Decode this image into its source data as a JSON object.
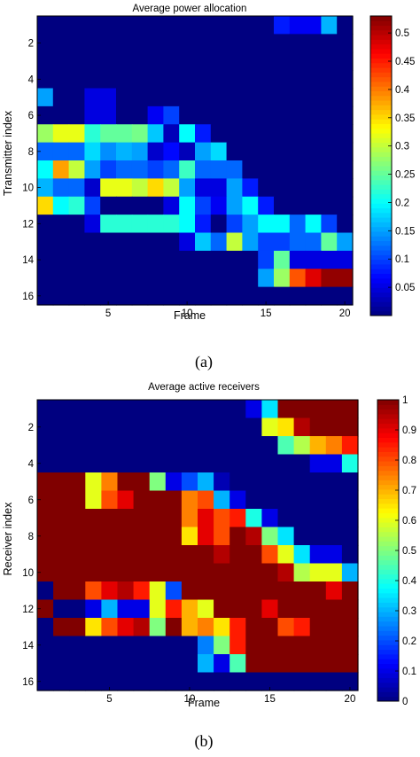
{
  "chart_data": [
    {
      "type": "heatmap",
      "title": "Average power allocation",
      "xlabel": "Frame",
      "ylabel": "Transmitter index",
      "caption": "(a)",
      "xticks": [
        "5",
        "10",
        "15",
        "20"
      ],
      "yticks": [
        "2",
        "4",
        "6",
        "8",
        "10",
        "12",
        "14",
        "16"
      ],
      "xlim": [
        1,
        20
      ],
      "ylim": [
        1,
        16
      ],
      "colorbar_ticks": [
        "0.05",
        "0.1",
        "0.15",
        "0.2",
        "0.25",
        "0.3",
        "0.35",
        "0.4",
        "0.45",
        "0.5"
      ],
      "colorbar_range": [
        0,
        0.53
      ],
      "colormap": "jet",
      "grid": false,
      "values": [
        [
          0,
          0,
          0,
          0,
          0,
          0,
          0,
          0,
          0,
          0,
          0,
          0,
          0,
          0,
          0,
          0.08,
          0.06,
          0.06,
          0.16,
          0
        ],
        [
          0,
          0,
          0,
          0,
          0,
          0,
          0,
          0,
          0,
          0,
          0,
          0,
          0,
          0,
          0,
          0,
          0,
          0,
          0,
          0
        ],
        [
          0,
          0,
          0,
          0,
          0,
          0,
          0,
          0,
          0,
          0,
          0,
          0,
          0,
          0,
          0,
          0,
          0,
          0,
          0,
          0
        ],
        [
          0,
          0,
          0,
          0,
          0,
          0,
          0,
          0,
          0,
          0,
          0,
          0,
          0,
          0,
          0,
          0,
          0,
          0,
          0,
          0
        ],
        [
          0.15,
          0,
          0,
          0.05,
          0.05,
          0,
          0,
          0,
          0,
          0,
          0,
          0,
          0,
          0,
          0,
          0,
          0,
          0,
          0,
          0
        ],
        [
          0,
          0,
          0,
          0.05,
          0.05,
          0,
          0,
          0.06,
          0.1,
          0,
          0,
          0,
          0,
          0,
          0,
          0,
          0,
          0,
          0,
          0
        ],
        [
          0.28,
          0.32,
          0.32,
          0.22,
          0.25,
          0.25,
          0.26,
          0.17,
          0.03,
          0.2,
          0.08,
          0,
          0,
          0,
          0,
          0,
          0,
          0,
          0,
          0
        ],
        [
          0.12,
          0.12,
          0.12,
          0.18,
          0.14,
          0.16,
          0.15,
          0.04,
          0.07,
          0.03,
          0.15,
          0.18,
          0,
          0,
          0,
          0,
          0,
          0,
          0,
          0
        ],
        [
          0.2,
          0.38,
          0.3,
          0.15,
          0.1,
          0.12,
          0.12,
          0.1,
          0.12,
          0.23,
          0.12,
          0.12,
          0.12,
          0,
          0,
          0,
          0,
          0,
          0,
          0
        ],
        [
          0.16,
          0.12,
          0.12,
          0.04,
          0.32,
          0.32,
          0.3,
          0.35,
          0.3,
          0.15,
          0.05,
          0.05,
          0.15,
          0.08,
          0,
          0,
          0,
          0,
          0,
          0
        ],
        [
          0.35,
          0.2,
          0.22,
          0.1,
          0,
          0,
          0,
          0,
          0.05,
          0.2,
          0.1,
          0.06,
          0.15,
          0.2,
          0.08,
          0,
          0,
          0,
          0,
          0
        ],
        [
          0,
          0,
          0,
          0.05,
          0.22,
          0.22,
          0.22,
          0.22,
          0.22,
          0.2,
          0.08,
          0,
          0.1,
          0.15,
          0.2,
          0.2,
          0.12,
          0.2,
          0.1,
          0
        ],
        [
          0,
          0,
          0,
          0,
          0,
          0,
          0,
          0,
          0,
          0.05,
          0.17,
          0.12,
          0.3,
          0.15,
          0.1,
          0.1,
          0.12,
          0.12,
          0.25,
          0.15
        ],
        [
          0,
          0,
          0,
          0,
          0,
          0,
          0,
          0,
          0,
          0,
          0,
          0,
          0,
          0,
          0.1,
          0.25,
          0.05,
          0.05,
          0.05,
          0.05
        ],
        [
          0,
          0,
          0,
          0,
          0,
          0,
          0,
          0,
          0,
          0,
          0,
          0,
          0,
          0,
          0.15,
          0.28,
          0.42,
          0.48,
          0.52,
          0.52
        ],
        [
          0,
          0,
          0,
          0,
          0,
          0,
          0,
          0,
          0,
          0,
          0,
          0,
          0,
          0,
          0,
          0,
          0,
          0,
          0,
          0
        ]
      ]
    },
    {
      "type": "heatmap",
      "title": "Average active receivers",
      "xlabel": "Frame",
      "ylabel": "Receiver index",
      "caption": "(b)",
      "xticks": [
        "5",
        "10",
        "15",
        "20"
      ],
      "yticks": [
        "2",
        "4",
        "6",
        "8",
        "10",
        "12",
        "14",
        "16"
      ],
      "xlim": [
        1,
        20
      ],
      "ylim": [
        1,
        16
      ],
      "colorbar_ticks": [
        "0",
        "0.1",
        "0.2",
        "0.3",
        "0.4",
        "0.5",
        "0.6",
        "0.7",
        "0.8",
        "0.9",
        "1"
      ],
      "colorbar_range": [
        0,
        1
      ],
      "colormap": "jet",
      "grid": false,
      "values": [
        [
          0,
          0,
          0,
          0,
          0,
          0,
          0,
          0,
          0,
          0,
          0,
          0,
          0,
          0.1,
          0.35,
          1,
          1,
          1,
          1,
          1
        ],
        [
          0,
          0,
          0,
          0,
          0,
          0,
          0,
          0,
          0,
          0,
          0,
          0,
          0,
          0,
          0.6,
          0.65,
          0.95,
          1,
          1,
          1
        ],
        [
          0,
          0,
          0,
          0,
          0,
          0,
          0,
          0,
          0,
          0,
          0,
          0,
          0,
          0,
          0,
          0.45,
          0.55,
          0.7,
          0.75,
          0.85
        ],
        [
          0,
          0,
          0,
          0,
          0,
          0,
          0,
          0,
          0,
          0,
          0,
          0,
          0,
          0,
          0,
          0,
          0,
          0.1,
          0.1,
          0.4
        ],
        [
          1,
          1,
          1,
          0.6,
          0.75,
          1,
          1,
          0.5,
          0.1,
          0.2,
          0.3,
          0.05,
          0,
          0,
          0,
          0,
          0,
          0,
          0,
          0
        ],
        [
          1,
          1,
          1,
          0.6,
          0.8,
          0.9,
          1,
          1,
          1,
          0.75,
          0.8,
          0.3,
          0.1,
          0,
          0,
          0,
          0,
          0,
          0,
          0
        ],
        [
          1,
          1,
          1,
          1,
          1,
          1,
          1,
          1,
          1,
          0.75,
          0.9,
          0.8,
          0.85,
          0.4,
          0.1,
          0,
          0,
          0,
          0,
          0
        ],
        [
          1,
          1,
          1,
          1,
          1,
          1,
          1,
          1,
          1,
          0.65,
          0.9,
          0.8,
          1,
          0.95,
          0.5,
          0.35,
          0,
          0,
          0,
          0
        ],
        [
          1,
          1,
          1,
          1,
          1,
          1,
          1,
          1,
          1,
          1,
          1,
          0.95,
          1,
          1,
          0.8,
          0.6,
          0.35,
          0.1,
          0.1,
          0
        ],
        [
          1,
          1,
          1,
          1,
          1,
          1,
          1,
          1,
          1,
          1,
          1,
          1,
          1,
          1,
          1,
          0.95,
          0.55,
          0.6,
          0.6,
          0.3
        ],
        [
          0,
          1,
          1,
          0.8,
          0.9,
          0.95,
          0.85,
          0.6,
          0.2,
          1,
          1,
          1,
          1,
          1,
          1,
          1,
          1,
          1,
          0.9,
          1
        ],
        [
          1,
          0,
          0,
          0.1,
          0.3,
          0.1,
          0.1,
          0.6,
          0.85,
          0.7,
          0.6,
          1,
          1,
          1,
          0.9,
          1,
          1,
          1,
          1,
          1
        ],
        [
          0,
          1,
          1,
          0.65,
          0.8,
          0.9,
          0.95,
          0.5,
          1,
          0.7,
          0.75,
          0.65,
          0.85,
          1,
          1,
          0.8,
          0.85,
          1,
          1,
          1
        ],
        [
          0,
          0,
          0,
          0,
          0,
          0,
          0,
          0,
          0,
          0,
          0.25,
          0.5,
          0.85,
          1,
          1,
          1,
          1,
          1,
          1,
          1
        ],
        [
          0,
          0,
          0,
          0,
          0,
          0,
          0,
          0,
          0,
          0,
          0.3,
          0.1,
          0.45,
          1,
          1,
          1,
          1,
          1,
          1,
          1
        ],
        [
          0,
          0,
          0,
          0,
          0,
          0,
          0,
          0,
          0,
          0,
          0,
          0,
          0,
          0,
          0,
          0,
          0,
          0,
          0,
          0
        ]
      ]
    }
  ]
}
